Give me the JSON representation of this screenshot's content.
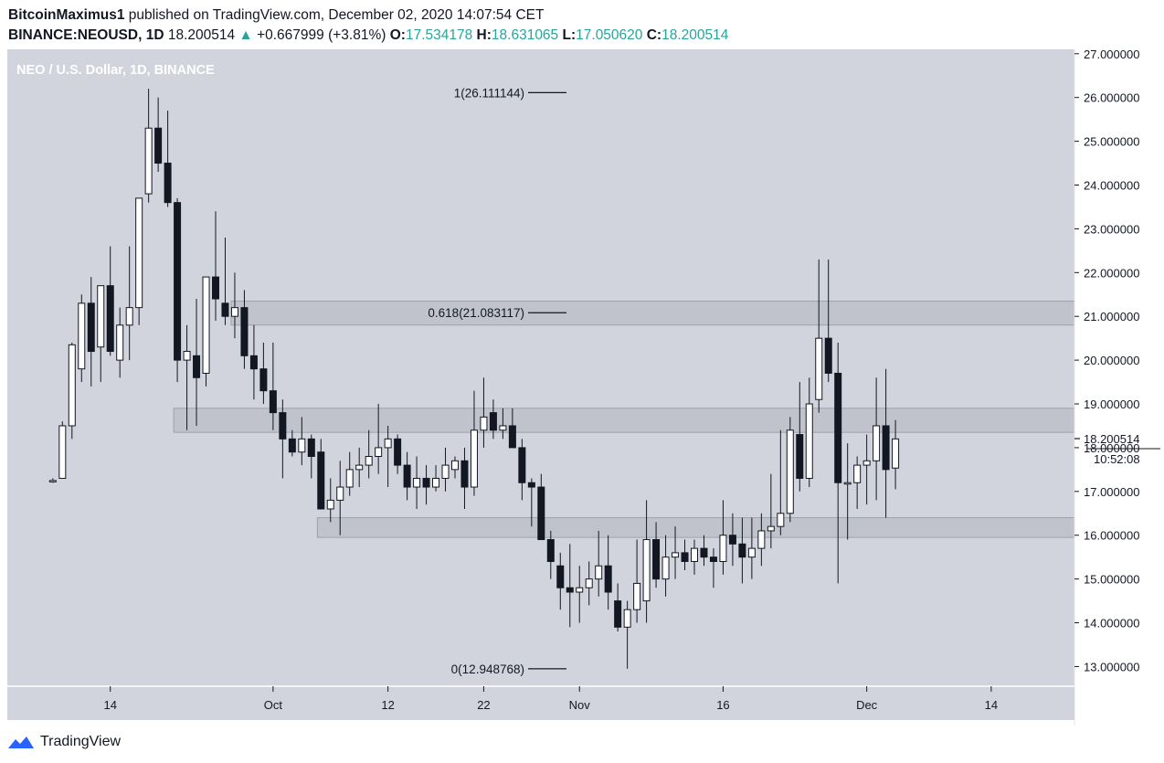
{
  "header": {
    "author": "BitcoinMaximus1",
    "published_text": "published on TradingView.com, December 02, 2020 14:07:54 CET",
    "symbol": "BINANCE:NEOUSD, 1D",
    "last": "18.200514",
    "arrow": "▲",
    "change": "+0.667999 (+3.81%)",
    "o_label": "O:",
    "o_value": "17.534178",
    "h_label": "H:",
    "h_value": "18.631065",
    "l_label": "L:",
    "l_value": "17.050620",
    "c_label": "C:",
    "c_value": "18.200514"
  },
  "footer": {
    "brand": "TradingView"
  },
  "colors": {
    "pane_bg": "#d1d4dc",
    "candle_up": "#ffffff",
    "candle_down": "#131722",
    "zone_fill": "#b2b5be",
    "text": "#131722",
    "green": "#26a69a",
    "tv_blue": "#2962ff"
  },
  "chart_data": {
    "type": "candlestick",
    "title": "NEO / U.S. Dollar, 1D, BINANCE",
    "currency_label": "USD",
    "price_label": "18.200514",
    "countdown_label": "10:52:08",
    "ylim": [
      12.55,
      27.1
    ],
    "y_ticks": [
      "13.000000",
      "14.000000",
      "15.000000",
      "16.000000",
      "17.000000",
      "18.000000",
      "19.000000",
      "20.000000",
      "21.000000",
      "22.000000",
      "23.000000",
      "24.000000",
      "25.000000",
      "26.000000",
      "27.000000"
    ],
    "x_ticks": [
      {
        "label": "14",
        "day": 14
      },
      {
        "label": "Oct",
        "day": 31
      },
      {
        "label": "12",
        "day": 43
      },
      {
        "label": "22",
        "day": 53
      },
      {
        "label": "Nov",
        "day": 63
      },
      {
        "label": "16",
        "day": 78
      },
      {
        "label": "Dec",
        "day": 93
      },
      {
        "label": "14",
        "day": 106
      }
    ],
    "candles": [
      {
        "d": 8,
        "o": 17.25,
        "h": 17.3,
        "l": 17.2,
        "c": 17.25
      },
      {
        "d": 9,
        "o": 17.3,
        "h": 18.6,
        "l": 17.3,
        "c": 18.5
      },
      {
        "d": 10,
        "o": 18.5,
        "h": 20.4,
        "l": 18.2,
        "c": 20.35
      },
      {
        "d": 11,
        "o": 19.8,
        "h": 21.5,
        "l": 19.5,
        "c": 21.3
      },
      {
        "d": 12,
        "o": 21.3,
        "h": 21.9,
        "l": 19.4,
        "c": 20.2
      },
      {
        "d": 13,
        "o": 20.3,
        "h": 21.7,
        "l": 19.5,
        "c": 21.7
      },
      {
        "d": 14,
        "o": 21.7,
        "h": 22.6,
        "l": 20.1,
        "c": 20.2
      },
      {
        "d": 15,
        "o": 20.0,
        "h": 21.2,
        "l": 19.6,
        "c": 20.8
      },
      {
        "d": 16,
        "o": 20.8,
        "h": 22.6,
        "l": 20.0,
        "c": 21.2
      },
      {
        "d": 17,
        "o": 21.2,
        "h": 23.7,
        "l": 20.8,
        "c": 23.7
      },
      {
        "d": 18,
        "o": 23.8,
        "h": 26.2,
        "l": 23.6,
        "c": 25.3
      },
      {
        "d": 19,
        "o": 25.3,
        "h": 26.0,
        "l": 24.3,
        "c": 24.5
      },
      {
        "d": 20,
        "o": 24.5,
        "h": 25.7,
        "l": 23.5,
        "c": 23.6
      },
      {
        "d": 21,
        "o": 23.6,
        "h": 23.7,
        "l": 19.5,
        "c": 20.0
      },
      {
        "d": 22,
        "o": 20.0,
        "h": 20.8,
        "l": 18.4,
        "c": 20.2
      },
      {
        "d": 23,
        "o": 20.1,
        "h": 21.4,
        "l": 18.5,
        "c": 19.6
      },
      {
        "d": 24,
        "o": 19.7,
        "h": 21.9,
        "l": 19.4,
        "c": 21.9
      },
      {
        "d": 25,
        "o": 21.9,
        "h": 23.4,
        "l": 20.9,
        "c": 21.4
      },
      {
        "d": 26,
        "o": 21.3,
        "h": 22.8,
        "l": 20.8,
        "c": 21.0
      },
      {
        "d": 27,
        "o": 21.0,
        "h": 22.0,
        "l": 20.5,
        "c": 21.2
      },
      {
        "d": 28,
        "o": 21.2,
        "h": 21.6,
        "l": 19.8,
        "c": 20.1
      },
      {
        "d": 29,
        "o": 20.1,
        "h": 20.8,
        "l": 19.1,
        "c": 19.8
      },
      {
        "d": 30,
        "o": 19.8,
        "h": 20.4,
        "l": 19.0,
        "c": 19.3
      },
      {
        "d": 31,
        "o": 19.3,
        "h": 20.4,
        "l": 18.4,
        "c": 18.8
      },
      {
        "d": 32,
        "o": 18.8,
        "h": 19.1,
        "l": 17.3,
        "c": 18.2
      },
      {
        "d": 33,
        "o": 18.2,
        "h": 18.4,
        "l": 17.8,
        "c": 17.9
      },
      {
        "d": 34,
        "o": 17.9,
        "h": 18.7,
        "l": 17.6,
        "c": 18.2
      },
      {
        "d": 35,
        "o": 18.2,
        "h": 18.3,
        "l": 17.3,
        "c": 17.8
      },
      {
        "d": 36,
        "o": 17.9,
        "h": 18.2,
        "l": 16.6,
        "c": 16.6
      },
      {
        "d": 37,
        "o": 16.6,
        "h": 17.3,
        "l": 16.3,
        "c": 16.8
      },
      {
        "d": 38,
        "o": 16.8,
        "h": 17.7,
        "l": 16.0,
        "c": 17.1
      },
      {
        "d": 39,
        "o": 17.1,
        "h": 17.9,
        "l": 16.9,
        "c": 17.5
      },
      {
        "d": 40,
        "o": 17.5,
        "h": 18.0,
        "l": 17.1,
        "c": 17.6
      },
      {
        "d": 41,
        "o": 17.6,
        "h": 18.4,
        "l": 17.3,
        "c": 17.8
      },
      {
        "d": 42,
        "o": 17.8,
        "h": 19.0,
        "l": 17.4,
        "c": 18.0
      },
      {
        "d": 43,
        "o": 18.0,
        "h": 18.5,
        "l": 17.1,
        "c": 18.2
      },
      {
        "d": 44,
        "o": 18.2,
        "h": 18.3,
        "l": 17.4,
        "c": 17.6
      },
      {
        "d": 45,
        "o": 17.6,
        "h": 17.9,
        "l": 16.8,
        "c": 17.1
      },
      {
        "d": 46,
        "o": 17.1,
        "h": 17.8,
        "l": 16.6,
        "c": 17.3
      },
      {
        "d": 47,
        "o": 17.3,
        "h": 17.6,
        "l": 16.7,
        "c": 17.1
      },
      {
        "d": 48,
        "o": 17.1,
        "h": 17.6,
        "l": 17.0,
        "c": 17.3
      },
      {
        "d": 49,
        "o": 17.3,
        "h": 18.0,
        "l": 17.0,
        "c": 17.6
      },
      {
        "d": 50,
        "o": 17.5,
        "h": 17.8,
        "l": 17.3,
        "c": 17.7
      },
      {
        "d": 51,
        "o": 17.7,
        "h": 18.0,
        "l": 16.6,
        "c": 17.1
      },
      {
        "d": 52,
        "o": 17.1,
        "h": 19.3,
        "l": 16.9,
        "c": 18.4
      },
      {
        "d": 53,
        "o": 18.4,
        "h": 19.6,
        "l": 18.0,
        "c": 18.7
      },
      {
        "d": 54,
        "o": 18.8,
        "h": 19.1,
        "l": 18.2,
        "c": 18.4
      },
      {
        "d": 55,
        "o": 18.4,
        "h": 18.9,
        "l": 18.2,
        "c": 18.5
      },
      {
        "d": 56,
        "o": 18.5,
        "h": 18.9,
        "l": 18.0,
        "c": 18.0
      },
      {
        "d": 57,
        "o": 18.0,
        "h": 18.2,
        "l": 16.8,
        "c": 17.2
      },
      {
        "d": 58,
        "o": 17.2,
        "h": 17.3,
        "l": 16.2,
        "c": 17.1
      },
      {
        "d": 59,
        "o": 17.1,
        "h": 17.4,
        "l": 15.9,
        "c": 15.9
      },
      {
        "d": 60,
        "o": 15.9,
        "h": 16.1,
        "l": 15.0,
        "c": 15.4
      },
      {
        "d": 61,
        "o": 15.3,
        "h": 15.6,
        "l": 14.3,
        "c": 14.8
      },
      {
        "d": 62,
        "o": 14.8,
        "h": 15.8,
        "l": 13.9,
        "c": 14.7
      },
      {
        "d": 63,
        "o": 14.7,
        "h": 15.3,
        "l": 14.0,
        "c": 14.8
      },
      {
        "d": 64,
        "o": 14.8,
        "h": 15.4,
        "l": 14.4,
        "c": 15.0
      },
      {
        "d": 65,
        "o": 15.0,
        "h": 16.1,
        "l": 14.6,
        "c": 15.3
      },
      {
        "d": 66,
        "o": 15.3,
        "h": 16.0,
        "l": 14.3,
        "c": 14.7
      },
      {
        "d": 67,
        "o": 14.5,
        "h": 14.9,
        "l": 13.8,
        "c": 13.9
      },
      {
        "d": 68,
        "o": 13.9,
        "h": 14.5,
        "l": 12.95,
        "c": 14.3
      },
      {
        "d": 69,
        "o": 14.3,
        "h": 15.9,
        "l": 14.0,
        "c": 14.9
      },
      {
        "d": 70,
        "o": 14.5,
        "h": 16.8,
        "l": 14.0,
        "c": 15.9
      },
      {
        "d": 71,
        "o": 15.9,
        "h": 16.3,
        "l": 14.8,
        "c": 15.0
      },
      {
        "d": 72,
        "o": 15.0,
        "h": 16.0,
        "l": 14.6,
        "c": 15.5
      },
      {
        "d": 73,
        "o": 15.5,
        "h": 16.2,
        "l": 15.0,
        "c": 15.6
      },
      {
        "d": 74,
        "o": 15.6,
        "h": 15.9,
        "l": 15.2,
        "c": 15.4
      },
      {
        "d": 75,
        "o": 15.4,
        "h": 15.9,
        "l": 15.1,
        "c": 15.7
      },
      {
        "d": 76,
        "o": 15.7,
        "h": 16.0,
        "l": 15.3,
        "c": 15.5
      },
      {
        "d": 77,
        "o": 15.5,
        "h": 15.7,
        "l": 14.8,
        "c": 15.4
      },
      {
        "d": 78,
        "o": 15.4,
        "h": 16.8,
        "l": 15.1,
        "c": 16.0
      },
      {
        "d": 79,
        "o": 16.0,
        "h": 16.5,
        "l": 15.3,
        "c": 15.8
      },
      {
        "d": 80,
        "o": 15.8,
        "h": 16.4,
        "l": 14.9,
        "c": 15.5
      },
      {
        "d": 81,
        "o": 15.5,
        "h": 16.4,
        "l": 15.0,
        "c": 15.7
      },
      {
        "d": 82,
        "o": 15.7,
        "h": 16.5,
        "l": 15.3,
        "c": 16.1
      },
      {
        "d": 83,
        "o": 16.1,
        "h": 17.4,
        "l": 15.7,
        "c": 16.2
      },
      {
        "d": 84,
        "o": 16.2,
        "h": 18.4,
        "l": 16.0,
        "c": 16.5
      },
      {
        "d": 85,
        "o": 16.5,
        "h": 18.7,
        "l": 16.3,
        "c": 18.4
      },
      {
        "d": 86,
        "o": 18.3,
        "h": 19.5,
        "l": 17.0,
        "c": 17.3
      },
      {
        "d": 87,
        "o": 17.3,
        "h": 19.6,
        "l": 17.1,
        "c": 19.0
      },
      {
        "d": 88,
        "o": 19.1,
        "h": 22.3,
        "l": 18.8,
        "c": 20.5
      },
      {
        "d": 89,
        "o": 20.5,
        "h": 22.3,
        "l": 19.5,
        "c": 19.7
      },
      {
        "d": 90,
        "o": 19.7,
        "h": 20.4,
        "l": 14.9,
        "c": 17.2
      },
      {
        "d": 91,
        "o": 17.2,
        "h": 18.1,
        "l": 15.9,
        "c": 17.2
      },
      {
        "d": 92,
        "o": 17.2,
        "h": 17.8,
        "l": 16.6,
        "c": 17.6
      },
      {
        "d": 93,
        "o": 17.6,
        "h": 18.3,
        "l": 16.7,
        "c": 17.7
      },
      {
        "d": 94,
        "o": 17.7,
        "h": 19.6,
        "l": 16.8,
        "c": 18.5
      },
      {
        "d": 95,
        "o": 18.5,
        "h": 19.8,
        "l": 16.4,
        "c": 17.5
      },
      {
        "d": 96,
        "o": 17.534178,
        "h": 18.631065,
        "l": 17.05062,
        "c": 18.200514
      }
    ],
    "fib_levels": [
      {
        "label": "1(26.111144)",
        "value": 26.111144
      },
      {
        "label": "0.618(21.083117)",
        "value": 21.083117
      },
      {
        "label": "0(12.948768)",
        "value": 12.948768
      }
    ],
    "zones": [
      {
        "from_day": 27,
        "to_day": 200,
        "low": 20.8,
        "high": 21.35
      },
      {
        "from_day": 21,
        "to_day": 200,
        "low": 18.35,
        "high": 18.9
      },
      {
        "from_day": 36,
        "to_day": 200,
        "low": 15.95,
        "high": 16.4
      }
    ]
  }
}
